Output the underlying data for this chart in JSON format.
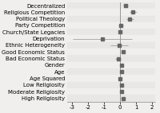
{
  "labels": [
    "Decentralized",
    "Religious Competition",
    "Political Theology",
    "Party Competition",
    "Church/State Legacies",
    "Deprivation",
    "Ethnic Heterogeneity",
    "Good Economic Status",
    "Bad Economic Status",
    "Gender",
    "Age",
    "Age Squared",
    "Low Religiosity",
    "Moderate Religiosity",
    "High Religiosity"
  ],
  "coefs": [
    0.35,
    0.82,
    0.62,
    0.05,
    0.02,
    -1.1,
    -0.05,
    0.18,
    -0.12,
    0.12,
    0.1,
    0.02,
    0.1,
    0.12,
    0.22
  ],
  "ci_low": [
    0.22,
    0.58,
    0.38,
    -0.1,
    -0.1,
    -2.95,
    -0.62,
    0.04,
    -0.28,
    0.02,
    0.0,
    -0.06,
    0.02,
    0.04,
    0.1
  ],
  "ci_high": [
    0.48,
    1.06,
    0.86,
    0.2,
    0.14,
    0.75,
    0.52,
    0.32,
    0.04,
    0.22,
    0.2,
    0.1,
    0.18,
    0.2,
    0.34
  ],
  "xlim": [
    -3.3,
    2.2
  ],
  "xticks": [
    -3,
    -2,
    -1,
    0,
    1,
    2
  ],
  "marker_color": "#666666",
  "line_color": "#999999",
  "bg_color": "#f0efed",
  "row_colors": [
    "#e8e7e5",
    "#f0efed"
  ],
  "vline_color": "#888888",
  "marker_size": 3.0,
  "font_size": 5.0,
  "tick_font_size": 5.0
}
